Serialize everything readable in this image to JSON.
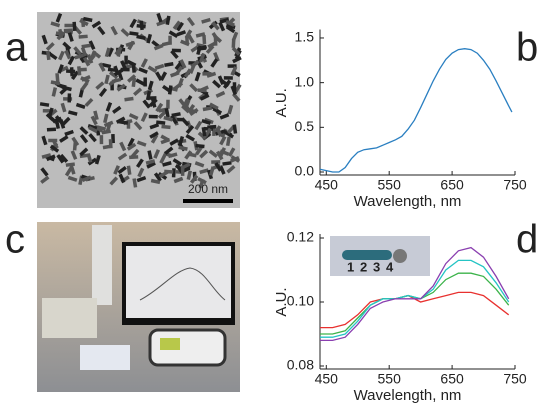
{
  "panels": [
    "a",
    "b",
    "c",
    "d"
  ],
  "images": {
    "scale_bar": "200 nm"
  },
  "chart_data": [
    {
      "type": "line",
      "ylabel": "A.U.",
      "xlabel": "Wavelength, nm",
      "x": [
        440,
        460,
        470,
        480,
        490,
        500,
        510,
        520,
        530,
        540,
        550,
        560,
        570,
        580,
        590,
        600,
        610,
        620,
        630,
        640,
        650,
        660,
        670,
        680,
        690,
        700,
        710,
        720,
        730,
        740,
        745
      ],
      "series": [
        {
          "color": "#2a7fc1",
          "values": [
            0.03,
            0.0,
            0.0,
            0.05,
            0.15,
            0.22,
            0.25,
            0.26,
            0.27,
            0.3,
            0.33,
            0.36,
            0.4,
            0.48,
            0.58,
            0.72,
            0.87,
            1.02,
            1.15,
            1.26,
            1.33,
            1.37,
            1.38,
            1.37,
            1.33,
            1.25,
            1.15,
            1.02,
            0.88,
            0.74,
            0.67
          ]
        }
      ],
      "xlim": [
        440,
        750
      ],
      "xticks": [
        450,
        550,
        650,
        750
      ],
      "ylim": [
        0,
        1.55
      ],
      "yticks": [
        {
          "value": 0,
          "label": "0.0"
        },
        0.5,
        {
          "value": 1,
          "label": "1.0"
        },
        1.5
      ]
    },
    {
      "type": "line",
      "ylabel": "A.U.",
      "xlabel": "Wavelength, nm",
      "x": [
        440,
        460,
        480,
        500,
        520,
        540,
        560,
        580,
        600,
        620,
        640,
        660,
        680,
        700,
        720,
        740
      ],
      "series": [
        {
          "name": "1",
          "color": "#e8312f",
          "values": [
            0.092,
            0.092,
            0.093,
            0.096,
            0.1,
            0.101,
            0.101,
            0.102,
            0.1,
            0.101,
            0.102,
            0.103,
            0.103,
            0.102,
            0.099,
            0.096
          ]
        },
        {
          "name": "2",
          "color": "#3cb34a",
          "values": [
            0.09,
            0.09,
            0.091,
            0.095,
            0.099,
            0.101,
            0.101,
            0.102,
            0.101,
            0.103,
            0.107,
            0.109,
            0.109,
            0.108,
            0.104,
            0.099
          ]
        },
        {
          "name": "3",
          "color": "#25c4c4",
          "values": [
            0.089,
            0.089,
            0.09,
            0.094,
            0.099,
            0.101,
            0.101,
            0.102,
            0.101,
            0.104,
            0.11,
            0.113,
            0.113,
            0.111,
            0.106,
            0.1
          ]
        },
        {
          "name": "4",
          "color": "#8a3fb0",
          "values": [
            0.088,
            0.088,
            0.089,
            0.093,
            0.098,
            0.1,
            0.101,
            0.101,
            0.101,
            0.105,
            0.112,
            0.116,
            0.117,
            0.114,
            0.108,
            0.101
          ]
        }
      ],
      "xlim": [
        440,
        750
      ],
      "xticks": [
        450,
        550,
        650,
        750
      ],
      "ylim": [
        0.08,
        0.12
      ],
      "yticks": [
        0.08,
        {
          "value": 0.1,
          "label": "0.10"
        },
        0.12
      ]
    }
  ]
}
